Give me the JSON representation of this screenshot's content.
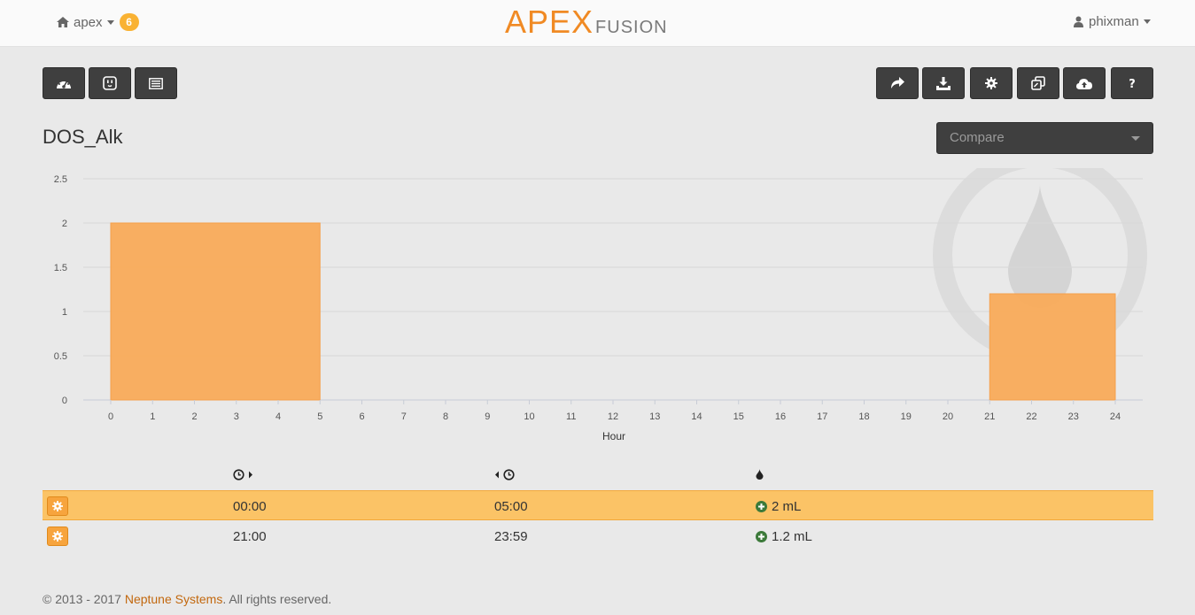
{
  "navbar": {
    "device_name": "apex",
    "badge_count": "6",
    "logo_primary": "APEX",
    "logo_secondary": "FUSION",
    "user_name": "phixman"
  },
  "page": {
    "title": "DOS_Alk",
    "compare_placeholder": "Compare"
  },
  "toolbar_left": [
    "dashboard-icon",
    "outlet-icon",
    "list-icon"
  ],
  "toolbar_right": [
    "share-icon",
    "download-icon",
    "gear-icon",
    "copy-icon",
    "cloud-upload-icon",
    "help-icon"
  ],
  "colors": {
    "accent": "#f08a24",
    "bar": "#f9ab5a",
    "selected_row": "#fbc366",
    "badge": "#f9b233",
    "plus": "#3c7a3a"
  },
  "chart_data": {
    "type": "bar",
    "title": "",
    "xlabel": "Hour",
    "ylabel": "",
    "xlim": [
      0,
      24
    ],
    "ylim": [
      0,
      2.5
    ],
    "xticks": [
      "0",
      "1",
      "2",
      "3",
      "4",
      "5",
      "6",
      "7",
      "8",
      "9",
      "10",
      "11",
      "12",
      "13",
      "14",
      "15",
      "16",
      "17",
      "18",
      "19",
      "20",
      "21",
      "22",
      "23",
      "24"
    ],
    "yticks": [
      "0",
      "0.5",
      "1",
      "1.5",
      "2",
      "2.5"
    ],
    "grid": true,
    "bars": [
      {
        "start": 0,
        "end": 5,
        "value": 2
      },
      {
        "start": 21,
        "end": 24,
        "value": 1.2
      }
    ]
  },
  "table": {
    "columns": [
      "start-time-icon",
      "end-time-icon",
      "drop-icon"
    ],
    "rows": [
      {
        "start": "00:00",
        "end": "05:00",
        "amount": "2 mL",
        "selected": true
      },
      {
        "start": "21:00",
        "end": "23:59",
        "amount": "1.2 mL",
        "selected": false
      }
    ]
  },
  "footer": {
    "prefix": "© 2013 - 2017",
    "company": "Neptune Systems",
    "suffix": ". All rights reserved."
  }
}
